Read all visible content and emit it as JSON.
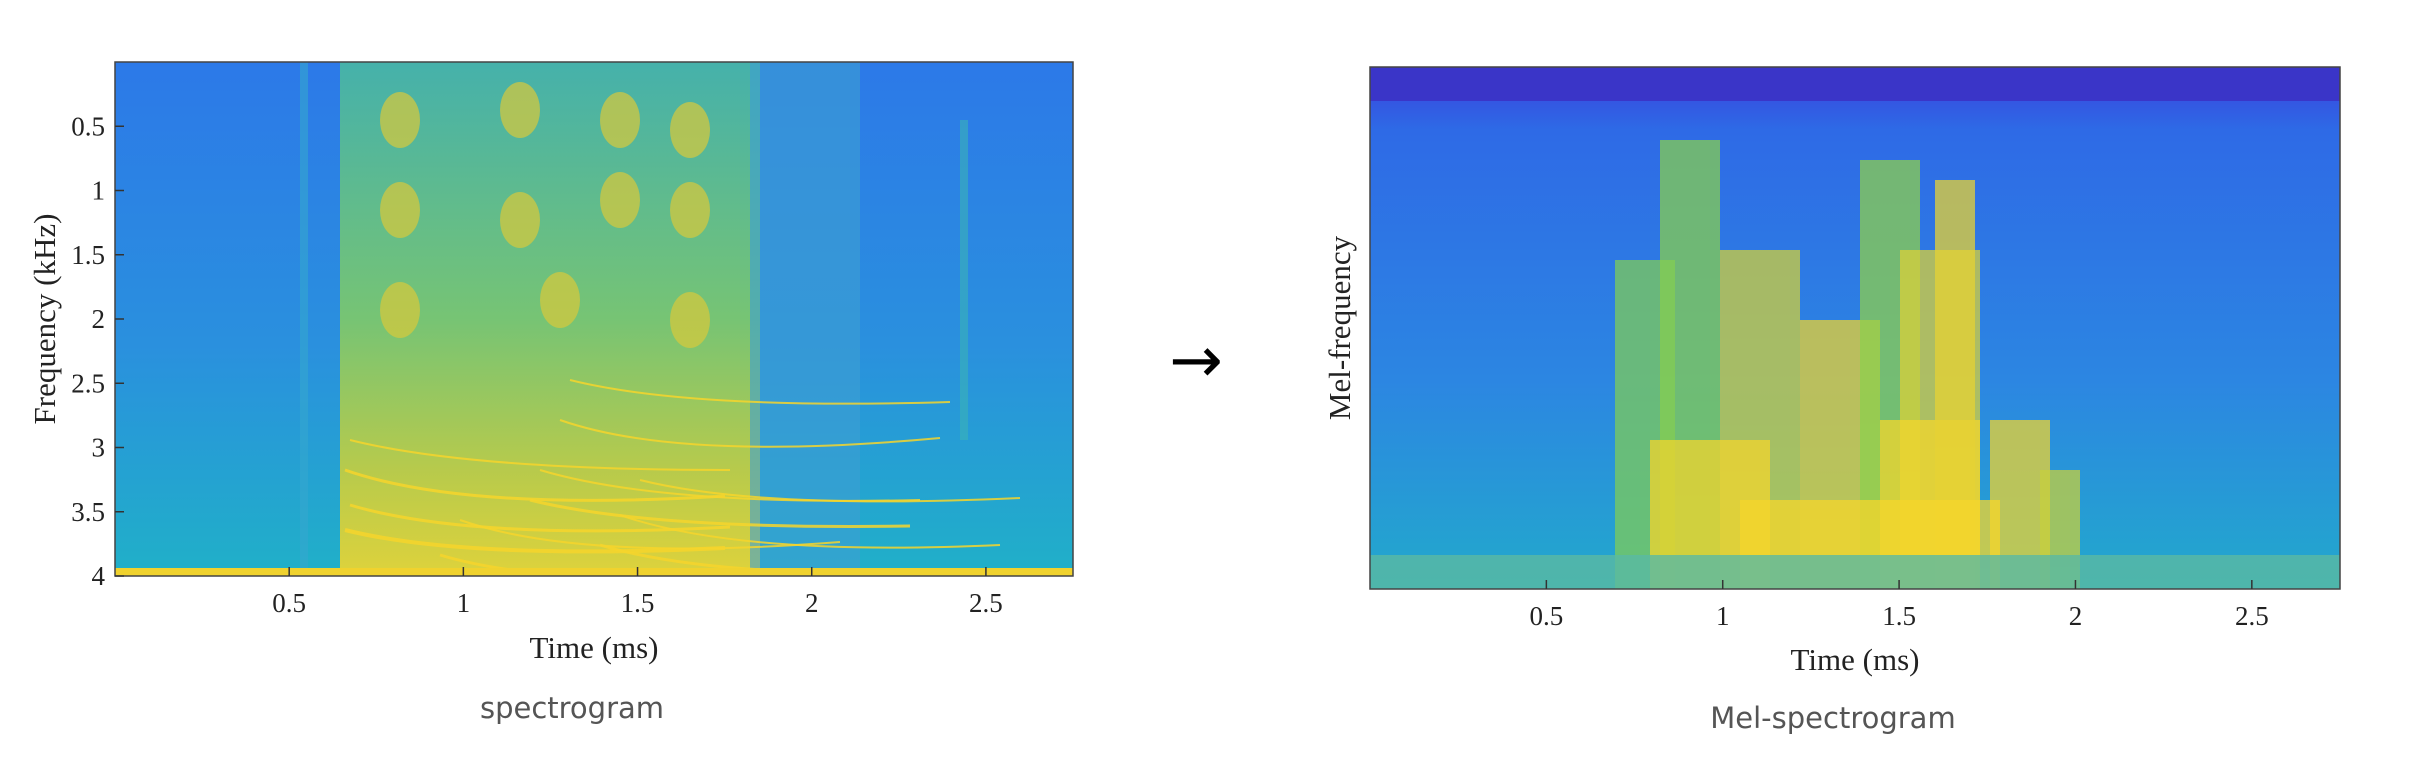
{
  "chart_data": [
    {
      "type": "heatmap",
      "caption": "spectrogram",
      "xlabel": "Time (ms)",
      "ylabel": "Frequency (kHz)",
      "xticks": [
        "0.5",
        "1",
        "1.5",
        "2",
        "2.5"
      ],
      "yticks": [
        "0.5",
        "1",
        "1.5",
        "2",
        "2.5",
        "3",
        "3.5",
        "4"
      ],
      "xlim": [
        0,
        2.75
      ],
      "ylim": [
        0,
        4
      ],
      "y_inverted": true,
      "colormap": "parula"
    },
    {
      "type": "heatmap",
      "caption": "Mel-spectrogram",
      "xlabel": "Time (ms)",
      "ylabel": "Mel-frequency",
      "xticks": [
        "0.5",
        "1",
        "1.5",
        "2",
        "2.5"
      ],
      "xlim": [
        0,
        2.75
      ],
      "colormap": "parula"
    }
  ],
  "arrow": "→",
  "colors": {
    "low": "#3a3ad8",
    "mid_low": "#2f7de8",
    "mid": "#21b3c4",
    "mid_high": "#8fcf3a",
    "high": "#f7d52a"
  }
}
